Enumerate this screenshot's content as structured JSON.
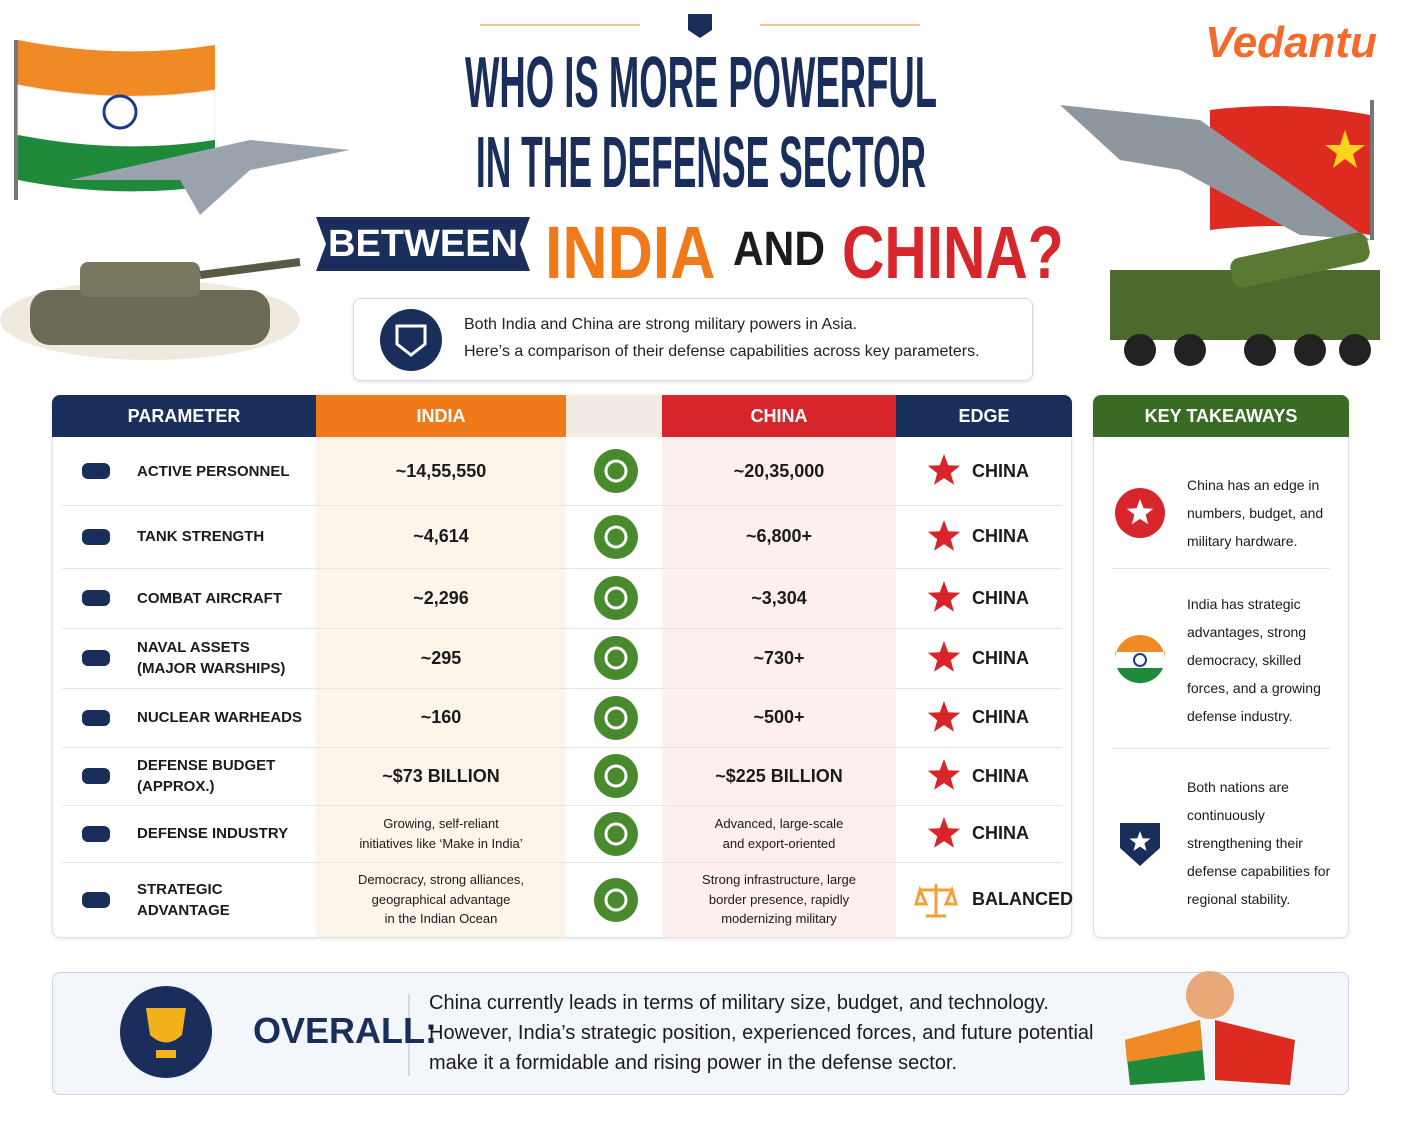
{
  "header": {
    "brand": "Vedantu",
    "title_lines": [
      "WHO IS MORE POWERFUL",
      "IN THE DEFENSE SECTOR"
    ],
    "between": "BETWEEN",
    "india": "INDIA",
    "and": "AND",
    "china": "CHINA?"
  },
  "intro": [
    "Both India and China are strong military powers in Asia.",
    "Here’s a comparison of their defense capabilities across key parameters."
  ],
  "table": {
    "headers": [
      "PARAMETER",
      "INDIA",
      "CHINA",
      "EDGE"
    ],
    "rows": [
      [
        "ACTIVE PERSONNEL",
        "~14,55,550",
        "~20,35,000",
        "CHINA"
      ],
      [
        "TANK STRENGTH",
        "~4,614",
        "~6,800+",
        "CHINA"
      ],
      [
        "COMBAT AIRCRAFT",
        "~2,296",
        "~3,304",
        "CHINA"
      ],
      [
        "NAVAL ASSETS\n(MAJOR WARSHIPS)",
        "~295",
        "~730+",
        "CHINA"
      ],
      [
        "NUCLEAR WARHEADS",
        "~160",
        "~500+",
        "CHINA"
      ],
      [
        "DEFENSE BUDGET\n(APPROX.)",
        "~$73 BILLION",
        "~$225 BILLION",
        "CHINA"
      ],
      [
        "DEFENSE INDUSTRY",
        "Growing, self-reliant\ninitiatives like ‘Make in India’",
        "Advanced, large-scale\nand export-oriented",
        "CHINA"
      ],
      [
        "STRATEGIC ADVANTAGE",
        "Democracy, strong alliances,\ngeographical advantage\nin the Indian Ocean",
        "Strong infrastructure, large\nborder presence, rapidly\nmodernizing military",
        "BALANCED"
      ]
    ]
  },
  "takeaways": {
    "title": "KEY TAKEAWAYS",
    "items": [
      "China has an edge in numbers, budget, and military hardware.",
      "India has strategic advantages, strong democracy, skilled forces, and a growing defense industry.",
      "Both nations are continuously strengthening their defense capabilities for regional stability."
    ]
  },
  "overall": {
    "label": "OVERALL:",
    "lines": [
      "China currently leads in terms of military size, budget, and technology.",
      "However, India’s strategic position, experienced forces, and future potential",
      "make it a formidable and rising power in the defense sector."
    ]
  }
}
